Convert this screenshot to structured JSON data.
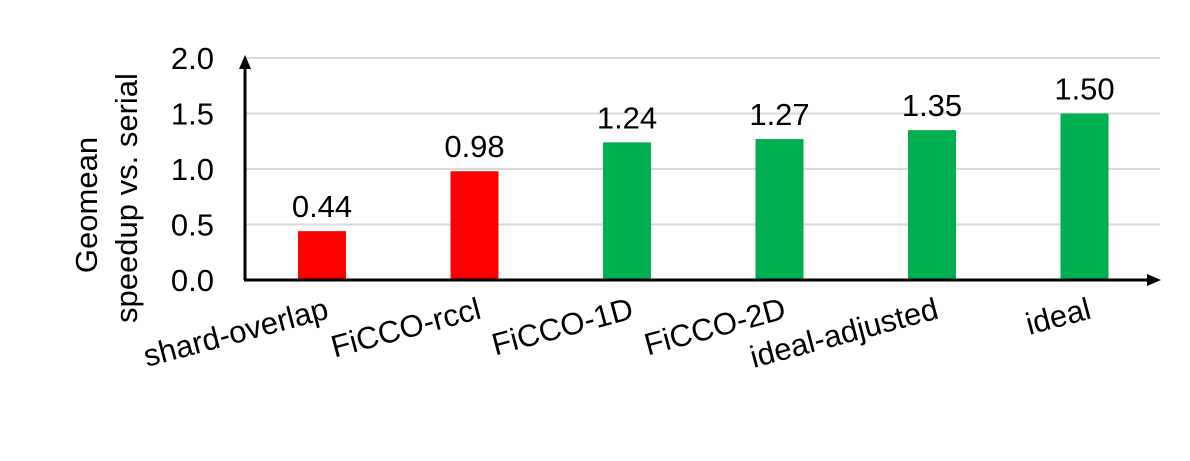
{
  "chart_data": {
    "type": "bar",
    "title": "",
    "xlabel": "",
    "ylabel": [
      "Geomean",
      "speedup vs. serial"
    ],
    "categories": [
      "shard-overlap",
      "FiCCO-rccl",
      "FiCCO-1D",
      "FiCCO-2D",
      "ideal-adjusted",
      "ideal"
    ],
    "values": [
      0.44,
      0.98,
      1.24,
      1.27,
      1.35,
      1.5
    ],
    "value_labels": [
      "0.44",
      "0.98",
      "1.24",
      "1.27",
      "1.35",
      "1.50"
    ],
    "bar_colors": [
      "#ff0000",
      "#ff0000",
      "#00b050",
      "#00b050",
      "#00b050",
      "#00b050"
    ],
    "ylim": [
      0,
      2.0
    ],
    "yticks": [
      0.0,
      0.5,
      1.0,
      1.5,
      2.0
    ],
    "ytick_labels": [
      "0.0",
      "0.5",
      "1.0",
      "1.5",
      "2.0"
    ],
    "grid": true,
    "legend": null
  },
  "colors": {
    "negative": "#ff0000",
    "positive": "#00b050",
    "grid": "#d9d9d9",
    "axis": "#000000"
  }
}
